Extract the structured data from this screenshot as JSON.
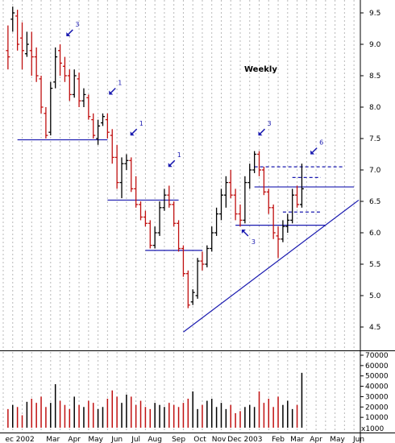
{
  "chart_data": {
    "type": "bar",
    "subtype": "ohlc_weekly_with_volume",
    "title": "Weekly",
    "price_axis": {
      "ylim": [
        4.0,
        9.75
      ],
      "ticks": [
        "4.5",
        "5.0",
        "5.5",
        "6.0",
        "6.5",
        "7.0",
        "7.5",
        "8.0",
        "8.5",
        "9.0",
        "9.5"
      ],
      "tick_values": [
        4.5,
        5.0,
        5.5,
        6.0,
        6.5,
        7.0,
        7.5,
        8.0,
        8.5,
        9.0,
        9.5
      ]
    },
    "volume_axis": {
      "ylim": [
        0,
        75000
      ],
      "ticks": [
        "10000",
        "20000",
        "30000",
        "40000",
        "50000",
        "60000",
        "70000"
      ],
      "tick_values": [
        10000,
        20000,
        30000,
        40000,
        50000,
        60000,
        70000
      ],
      "multiplier_label": "x1000"
    },
    "x_axis": {
      "xlim": [
        0,
        75
      ],
      "labels": [
        "ec 2002",
        "Mar",
        "Apr",
        "May",
        "Jun",
        "Jul",
        "Aug",
        "Sep",
        "Oct",
        "Nov",
        "Dec 2003",
        "Feb",
        "Mar",
        "Apr",
        "May",
        "Jun"
      ],
      "label_positions": [
        3.5,
        10.5,
        15,
        19.5,
        24,
        28,
        32,
        37,
        41.5,
        45.5,
        51,
        58,
        62,
        66,
        70.5,
        75
      ]
    },
    "gridlines": "vertical dotted",
    "colors": {
      "up": "#000000",
      "down": "#c01010",
      "trendline": "#1a1ab0",
      "levels": "#1a1ab0",
      "grid": "#b8b8b8"
    },
    "bars": [
      {
        "o": 8.9,
        "h": 9.3,
        "l": 8.6,
        "c": 8.8
      },
      {
        "o": 9.4,
        "h": 9.6,
        "l": 9.2,
        "c": 9.5
      },
      {
        "o": 9.45,
        "h": 9.55,
        "l": 8.9,
        "c": 9.0
      },
      {
        "o": 9.1,
        "h": 9.35,
        "l": 8.6,
        "c": 8.9
      },
      {
        "o": 8.85,
        "h": 9.2,
        "l": 8.8,
        "c": 9.0
      },
      {
        "o": 8.9,
        "h": 9.2,
        "l": 8.5,
        "c": 8.8
      },
      {
        "o": 8.8,
        "h": 8.95,
        "l": 8.4,
        "c": 8.5
      },
      {
        "o": 8.45,
        "h": 8.5,
        "l": 7.9,
        "c": 8.0
      },
      {
        "o": 7.9,
        "h": 8.0,
        "l": 7.5,
        "c": 7.55
      },
      {
        "o": 7.6,
        "h": 8.4,
        "l": 7.55,
        "c": 8.3
      },
      {
        "o": 8.4,
        "h": 8.95,
        "l": 8.3,
        "c": 8.8
      },
      {
        "o": 8.9,
        "h": 9.0,
        "l": 8.5,
        "c": 8.7
      },
      {
        "o": 8.65,
        "h": 8.8,
        "l": 8.4,
        "c": 8.5
      },
      {
        "o": 8.5,
        "h": 8.6,
        "l": 8.1,
        "c": 8.2
      },
      {
        "o": 8.2,
        "h": 8.6,
        "l": 8.15,
        "c": 8.5
      },
      {
        "o": 8.45,
        "h": 8.55,
        "l": 8.0,
        "c": 8.1
      },
      {
        "o": 8.1,
        "h": 8.3,
        "l": 8.0,
        "c": 8.2
      },
      {
        "o": 8.15,
        "h": 8.2,
        "l": 7.8,
        "c": 7.85
      },
      {
        "o": 7.8,
        "h": 7.9,
        "l": 7.5,
        "c": 7.55
      },
      {
        "o": 7.5,
        "h": 7.8,
        "l": 7.4,
        "c": 7.7
      },
      {
        "o": 7.75,
        "h": 7.9,
        "l": 7.7,
        "c": 7.85
      },
      {
        "o": 7.8,
        "h": 7.9,
        "l": 7.5,
        "c": 7.6
      },
      {
        "o": 7.55,
        "h": 7.65,
        "l": 7.1,
        "c": 7.2
      },
      {
        "o": 7.2,
        "h": 7.4,
        "l": 6.7,
        "c": 6.8
      },
      {
        "o": 6.8,
        "h": 7.2,
        "l": 6.55,
        "c": 7.1
      },
      {
        "o": 7.1,
        "h": 7.25,
        "l": 7.0,
        "c": 7.15
      },
      {
        "o": 7.15,
        "h": 7.2,
        "l": 6.65,
        "c": 6.7
      },
      {
        "o": 6.7,
        "h": 6.9,
        "l": 6.4,
        "c": 6.45
      },
      {
        "o": 6.45,
        "h": 6.5,
        "l": 6.2,
        "c": 6.25
      },
      {
        "o": 6.25,
        "h": 6.35,
        "l": 6.1,
        "c": 6.15
      },
      {
        "o": 6.15,
        "h": 6.2,
        "l": 5.75,
        "c": 5.8
      },
      {
        "o": 5.8,
        "h": 6.1,
        "l": 5.75,
        "c": 6.0
      },
      {
        "o": 6.0,
        "h": 6.5,
        "l": 5.95,
        "c": 6.4
      },
      {
        "o": 6.4,
        "h": 6.7,
        "l": 6.35,
        "c": 6.6
      },
      {
        "o": 6.6,
        "h": 6.75,
        "l": 6.4,
        "c": 6.45
      },
      {
        "o": 6.45,
        "h": 6.5,
        "l": 6.1,
        "c": 6.15
      },
      {
        "o": 6.15,
        "h": 6.2,
        "l": 5.7,
        "c": 5.75
      },
      {
        "o": 5.75,
        "h": 5.8,
        "l": 5.3,
        "c": 5.35
      },
      {
        "o": 5.35,
        "h": 5.4,
        "l": 4.8,
        "c": 4.85
      },
      {
        "o": 4.9,
        "h": 5.1,
        "l": 4.85,
        "c": 5.05
      },
      {
        "o": 5.0,
        "h": 5.6,
        "l": 4.95,
        "c": 5.55
      },
      {
        "o": 5.55,
        "h": 5.7,
        "l": 5.4,
        "c": 5.5
      },
      {
        "o": 5.5,
        "h": 5.8,
        "l": 5.45,
        "c": 5.75
      },
      {
        "o": 5.75,
        "h": 6.1,
        "l": 5.7,
        "c": 6.0
      },
      {
        "o": 6.0,
        "h": 6.4,
        "l": 5.95,
        "c": 6.3
      },
      {
        "o": 6.3,
        "h": 6.7,
        "l": 6.2,
        "c": 6.6
      },
      {
        "o": 6.6,
        "h": 6.9,
        "l": 6.4,
        "c": 6.8
      },
      {
        "o": 6.8,
        "h": 7.0,
        "l": 6.55,
        "c": 6.6
      },
      {
        "o": 6.6,
        "h": 6.7,
        "l": 6.2,
        "c": 6.3
      },
      {
        "o": 6.3,
        "h": 6.45,
        "l": 6.1,
        "c": 6.2
      },
      {
        "o": 6.2,
        "h": 6.9,
        "l": 6.15,
        "c": 6.8
      },
      {
        "o": 6.8,
        "h": 7.1,
        "l": 6.7,
        "c": 7.0
      },
      {
        "o": 7.0,
        "h": 7.3,
        "l": 6.95,
        "c": 7.25
      },
      {
        "o": 7.25,
        "h": 7.3,
        "l": 6.9,
        "c": 7.0
      },
      {
        "o": 7.0,
        "h": 7.05,
        "l": 6.6,
        "c": 6.65
      },
      {
        "o": 6.65,
        "h": 6.7,
        "l": 6.3,
        "c": 6.4
      },
      {
        "o": 6.4,
        "h": 6.45,
        "l": 5.9,
        "c": 6.0
      },
      {
        "o": 5.95,
        "h": 6.1,
        "l": 5.6,
        "c": 5.9
      },
      {
        "o": 5.9,
        "h": 6.2,
        "l": 5.85,
        "c": 6.1
      },
      {
        "o": 6.1,
        "h": 6.3,
        "l": 6.0,
        "c": 6.2
      },
      {
        "o": 6.2,
        "h": 6.7,
        "l": 6.15,
        "c": 6.6
      },
      {
        "o": 6.6,
        "h": 6.75,
        "l": 6.4,
        "c": 6.45
      },
      {
        "o": 6.45,
        "h": 7.1,
        "l": 6.4,
        "c": 6.7
      }
    ],
    "volume": [
      18000,
      22000,
      20000,
      12000,
      25000,
      28000,
      24000,
      30000,
      20000,
      24000,
      42000,
      26000,
      22000,
      18000,
      30000,
      22000,
      20000,
      26000,
      24000,
      18000,
      20000,
      28000,
      36000,
      30000,
      24000,
      32000,
      30000,
      22000,
      26000,
      20000,
      18000,
      24000,
      22000,
      20000,
      24000,
      22000,
      20000,
      24000,
      28000,
      35000,
      18000,
      22000,
      26000,
      28000,
      20000,
      24000,
      18000,
      22000,
      14000,
      16000,
      20000,
      22000,
      20000,
      35000,
      24000,
      28000,
      20000,
      30000,
      22000,
      26000,
      18000,
      22000,
      53000
    ],
    "support_resistance": [
      {
        "x": [
          3,
          22
        ],
        "y": 7.48
      },
      {
        "x": [
          22,
          37
        ],
        "y": 6.52
      },
      {
        "x": [
          30,
          42
        ],
        "y": 5.72
      },
      {
        "x": [
          49,
          68
        ],
        "y": 6.12
      },
      {
        "x": [
          53,
          74
        ],
        "y": 6.73
      }
    ],
    "dashed_levels": [
      {
        "x": [
          53,
          72
        ],
        "y": 7.05
      },
      {
        "x": [
          61,
          67
        ],
        "y": 6.88
      },
      {
        "x": [
          59,
          67
        ],
        "y": 6.33
      }
    ],
    "trendline": {
      "x": [
        38,
        75
      ],
      "y": [
        4.42,
        6.52
      ]
    },
    "annotations": [
      {
        "text": "3",
        "x": 14,
        "y": 9.18,
        "arrow": "down-left"
      },
      {
        "text": "1",
        "x": 23,
        "y": 8.25,
        "arrow": "down-left"
      },
      {
        "text": "1",
        "x": 27.5,
        "y": 7.6,
        "arrow": "down-left"
      },
      {
        "text": "1",
        "x": 35.5,
        "y": 7.1,
        "arrow": "down-left"
      },
      {
        "text": "3",
        "x": 54.5,
        "y": 7.6,
        "arrow": "down-left"
      },
      {
        "text": "3",
        "x": 51,
        "y": 6.0,
        "arrow": "up-left"
      },
      {
        "text": "6",
        "x": 65.5,
        "y": 7.3,
        "arrow": "down-left"
      }
    ]
  }
}
